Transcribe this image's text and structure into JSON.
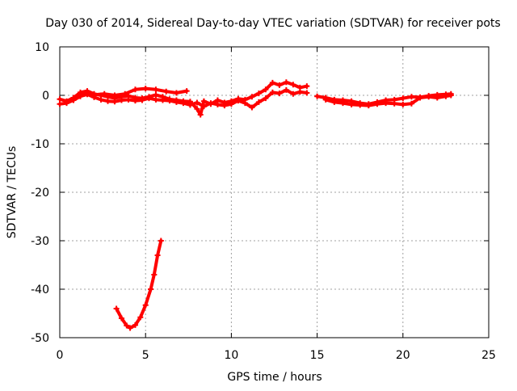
{
  "chart_data": {
    "type": "scatter",
    "title": "Day 030 of 2014, Sidereal Day-to-day VTEC variation (SDTVAR) for receiver pots",
    "xlabel": "GPS time / hours",
    "ylabel": "SDTVAR / TECUs",
    "xlim": [
      0,
      25
    ],
    "ylim": [
      -50,
      10
    ],
    "xticks": [
      "0",
      "5",
      "10",
      "15",
      "20",
      "25"
    ],
    "yticks": [
      "10",
      "0",
      "-10",
      "-20",
      "-30",
      "-40",
      "-50"
    ],
    "grid": true,
    "legend": "none",
    "series_color": "#ff0000",
    "series": [
      {
        "name": "track-1",
        "points": [
          [
            0.0,
            -0.8
          ],
          [
            0.4,
            -1.2
          ],
          [
            0.8,
            -0.5
          ],
          [
            1.2,
            0.6
          ],
          [
            1.6,
            0.9
          ],
          [
            2.0,
            0.3
          ],
          [
            2.4,
            0.0
          ],
          [
            2.8,
            -0.3
          ],
          [
            3.2,
            -0.6
          ],
          [
            3.6,
            -0.3
          ],
          [
            4.0,
            -0.1
          ],
          [
            4.4,
            -0.5
          ],
          [
            4.8,
            -0.6
          ],
          [
            5.2,
            -0.3
          ],
          [
            5.6,
            0.1
          ],
          [
            6.0,
            -0.3
          ],
          [
            6.4,
            -0.8
          ],
          [
            6.8,
            -1.0
          ],
          [
            7.2,
            -1.2
          ],
          [
            7.6,
            -1.3
          ],
          [
            8.0,
            -2.8
          ],
          [
            8.2,
            -4.0
          ],
          [
            8.4,
            -1.2
          ],
          [
            8.8,
            -1.8
          ],
          [
            9.2,
            -1.0
          ],
          [
            9.6,
            -1.5
          ],
          [
            10.0,
            -1.2
          ],
          [
            10.4,
            -0.7
          ],
          [
            10.8,
            -0.9
          ],
          [
            11.2,
            -0.3
          ],
          [
            11.6,
            0.4
          ],
          [
            12.0,
            1.2
          ],
          [
            12.4,
            2.6
          ],
          [
            12.8,
            2.1
          ],
          [
            13.2,
            2.7
          ],
          [
            13.6,
            2.2
          ],
          [
            14.0,
            1.6
          ],
          [
            14.4,
            1.9
          ]
        ]
      },
      {
        "name": "track-2",
        "points": [
          [
            0.0,
            -1.8
          ],
          [
            0.4,
            -1.6
          ],
          [
            0.8,
            -1.0
          ],
          [
            1.2,
            -0.2
          ],
          [
            1.6,
            0.2
          ],
          [
            2.0,
            -0.4
          ],
          [
            2.4,
            -0.9
          ],
          [
            2.8,
            -1.2
          ],
          [
            3.2,
            -1.3
          ],
          [
            3.6,
            -1.0
          ],
          [
            4.0,
            -0.9
          ],
          [
            4.4,
            -1.1
          ],
          [
            4.8,
            -1.0
          ],
          [
            5.2,
            -0.6
          ],
          [
            5.6,
            -0.9
          ],
          [
            6.0,
            -1.0
          ],
          [
            6.4,
            -1.1
          ],
          [
            6.8,
            -1.4
          ],
          [
            7.2,
            -1.6
          ],
          [
            7.6,
            -2.0
          ],
          [
            8.0,
            -1.5
          ],
          [
            8.4,
            -2.3
          ],
          [
            8.8,
            -1.6
          ],
          [
            9.2,
            -1.9
          ],
          [
            9.6,
            -2.1
          ],
          [
            10.0,
            -1.8
          ],
          [
            10.4,
            -1.1
          ],
          [
            10.8,
            -1.6
          ],
          [
            11.2,
            -2.5
          ],
          [
            11.6,
            -1.4
          ],
          [
            12.0,
            -0.6
          ],
          [
            12.4,
            0.6
          ],
          [
            12.8,
            0.4
          ],
          [
            13.2,
            1.1
          ],
          [
            13.6,
            0.3
          ],
          [
            14.0,
            0.7
          ],
          [
            14.4,
            0.5
          ]
        ]
      },
      {
        "name": "track-3",
        "points": [
          [
            1.4,
            0.3
          ],
          [
            2.0,
            0.1
          ],
          [
            2.6,
            0.3
          ],
          [
            3.2,
            0.0
          ],
          [
            3.8,
            0.3
          ],
          [
            4.4,
            1.2
          ],
          [
            5.0,
            1.4
          ],
          [
            5.6,
            1.2
          ],
          [
            6.2,
            0.8
          ],
          [
            6.8,
            0.5
          ],
          [
            7.4,
            0.9
          ]
        ]
      },
      {
        "name": "track-4",
        "points": [
          [
            15.0,
            -0.2
          ],
          [
            15.5,
            -0.5
          ],
          [
            16.0,
            -0.9
          ],
          [
            16.5,
            -1.0
          ],
          [
            17.0,
            -1.2
          ],
          [
            17.5,
            -1.6
          ],
          [
            18.0,
            -1.8
          ],
          [
            18.5,
            -1.4
          ],
          [
            19.0,
            -1.0
          ],
          [
            19.5,
            -0.9
          ],
          [
            20.0,
            -0.6
          ],
          [
            20.5,
            -0.3
          ],
          [
            21.0,
            -0.4
          ],
          [
            21.5,
            -0.1
          ],
          [
            22.0,
            0.1
          ],
          [
            22.5,
            0.2
          ],
          [
            22.8,
            0.3
          ]
        ]
      },
      {
        "name": "track-5",
        "points": [
          [
            15.5,
            -0.9
          ],
          [
            16.0,
            -1.4
          ],
          [
            16.5,
            -1.6
          ],
          [
            17.0,
            -1.9
          ],
          [
            17.5,
            -2.0
          ],
          [
            18.0,
            -2.1
          ],
          [
            18.5,
            -1.8
          ],
          [
            19.0,
            -1.6
          ],
          [
            19.5,
            -1.7
          ],
          [
            20.0,
            -1.9
          ],
          [
            20.5,
            -1.7
          ],
          [
            21.0,
            -0.5
          ],
          [
            21.5,
            -0.3
          ],
          [
            22.0,
            -0.5
          ],
          [
            22.5,
            -0.2
          ],
          [
            22.8,
            0.0
          ]
        ]
      },
      {
        "name": "track-6",
        "points": [
          [
            3.3,
            -44.0
          ],
          [
            3.6,
            -46.0
          ],
          [
            3.9,
            -47.5
          ],
          [
            4.1,
            -48.0
          ],
          [
            4.4,
            -47.4
          ],
          [
            4.7,
            -45.8
          ],
          [
            5.0,
            -43.3
          ],
          [
            5.3,
            -40.0
          ],
          [
            5.5,
            -37.0
          ],
          [
            5.7,
            -33.0
          ],
          [
            5.9,
            -30.0
          ]
        ]
      }
    ]
  }
}
